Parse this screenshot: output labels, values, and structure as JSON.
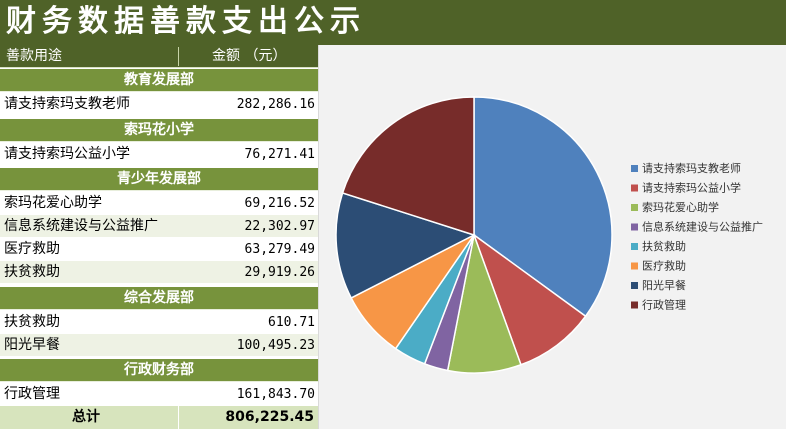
{
  "title": "财务数据善款支出公示",
  "table": {
    "header": {
      "purpose": "善款用途",
      "amount": "金额 （元）"
    },
    "sections": [
      {
        "dept": "教育发展部",
        "items": [
          {
            "name": "请支持索玛支教老师",
            "amount": "282,286.16"
          }
        ]
      },
      {
        "dept": "索玛花小学",
        "items": [
          {
            "name": "请支持索玛公益小学",
            "amount": "76,271.41"
          }
        ]
      },
      {
        "dept": "青少年发展部",
        "items": [
          {
            "name": "索玛花爱心助学",
            "amount": "69,216.52"
          },
          {
            "name": "信息系统建设与公益推广",
            "amount": "22,302.97"
          },
          {
            "name": "医疗救助",
            "amount": "63,279.49"
          },
          {
            "name": "扶贫救助",
            "amount": "29,919.26"
          }
        ]
      },
      {
        "dept": "综合发展部",
        "items": [
          {
            "name": "扶贫救助",
            "amount": "610.71"
          },
          {
            "name": "阳光早餐",
            "amount": "100,495.23"
          }
        ]
      },
      {
        "dept": "行政财务部",
        "items": [
          {
            "name": "行政管理",
            "amount": "161,843.70"
          }
        ]
      }
    ],
    "total": {
      "label": "总计",
      "amount": "806,225.45"
    }
  },
  "chart_data": {
    "type": "pie",
    "title": "",
    "legend_position": "right",
    "categories": [
      "请支持索玛支教老师",
      "请支持索玛公益小学",
      "索玛花爱心助学",
      "信息系统建设与公益推广",
      "扶贫救助",
      "医疗救助",
      "阳光早餐",
      "行政管理"
    ],
    "values": [
      282286.16,
      76271.41,
      69216.52,
      22302.97,
      30529.97,
      63279.49,
      100495.23,
      161843.7
    ],
    "colors": [
      "#4f81bd",
      "#c0504d",
      "#9bbb59",
      "#8064a2",
      "#4bacc6",
      "#f79646",
      "#2c4d75",
      "#772c2a"
    ]
  }
}
